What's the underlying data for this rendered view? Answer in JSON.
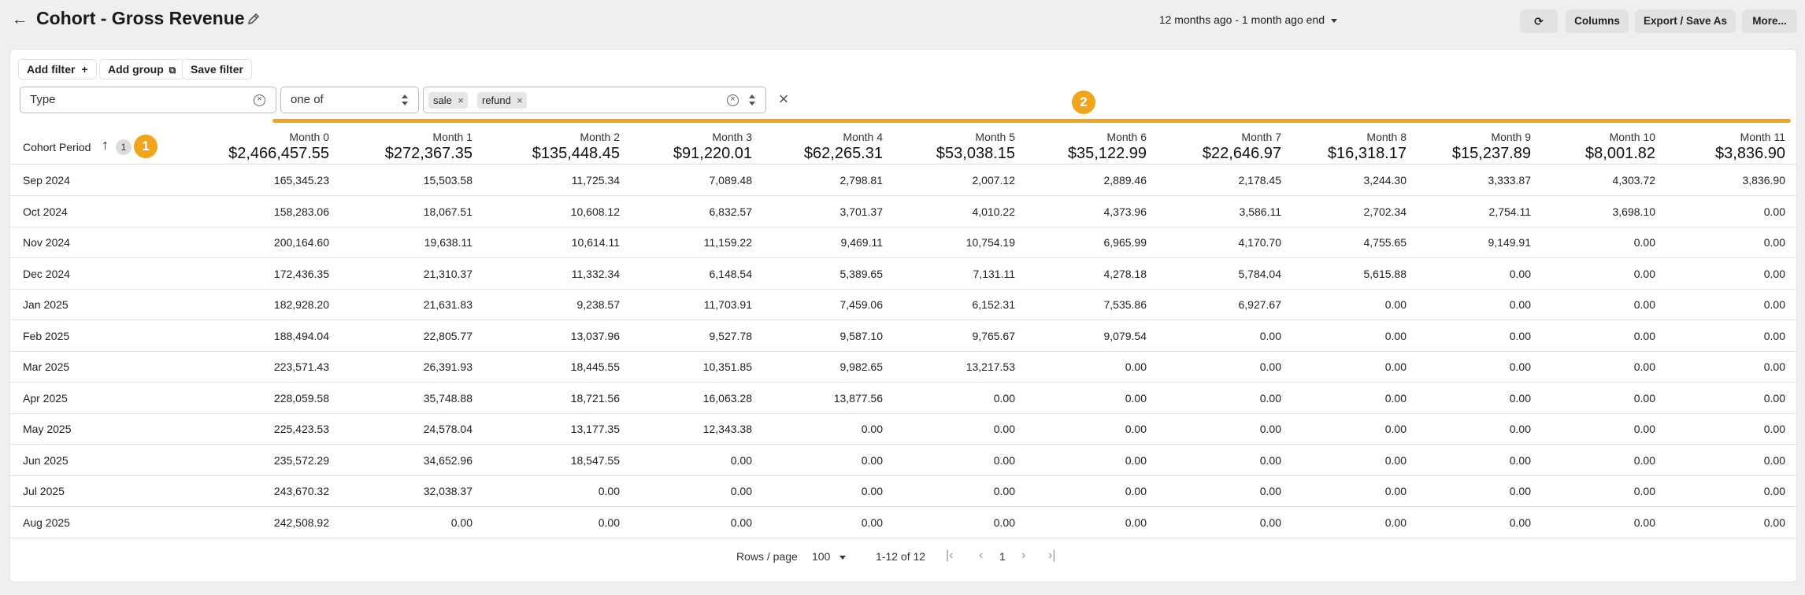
{
  "header": {
    "title": "Cohort - Gross Revenue",
    "date_range": "12 months ago - 1 month ago end",
    "refresh_glyph": "⟳",
    "columns_label": "Columns",
    "export_label": "Export / Save As",
    "more_label": "More..."
  },
  "filters": {
    "add_filter": "Add filter",
    "add_group": "Add group",
    "save_filter": "Save filter",
    "field": "Type",
    "operator": "one of",
    "values": [
      "sale",
      "refund"
    ]
  },
  "annotations": {
    "badge1": "1",
    "badge2": "2"
  },
  "table": {
    "row_header": "Cohort Period",
    "sort_count": "1",
    "columns": [
      {
        "label": "Month 0",
        "total": "$2,466,457.55"
      },
      {
        "label": "Month 1",
        "total": "$272,367.35"
      },
      {
        "label": "Month 2",
        "total": "$135,448.45"
      },
      {
        "label": "Month 3",
        "total": "$91,220.01"
      },
      {
        "label": "Month 4",
        "total": "$62,265.31"
      },
      {
        "label": "Month 5",
        "total": "$53,038.15"
      },
      {
        "label": "Month 6",
        "total": "$35,122.99"
      },
      {
        "label": "Month 7",
        "total": "$22,646.97"
      },
      {
        "label": "Month 8",
        "total": "$16,318.17"
      },
      {
        "label": "Month 9",
        "total": "$15,237.89"
      },
      {
        "label": "Month 10",
        "total": "$8,001.82"
      },
      {
        "label": "Month 11",
        "total": "$3,836.90"
      }
    ],
    "rows": [
      {
        "period": "Sep 2024",
        "values": [
          "165,345.23",
          "15,503.58",
          "11,725.34",
          "7,089.48",
          "2,798.81",
          "2,007.12",
          "2,889.46",
          "2,178.45",
          "3,244.30",
          "3,333.87",
          "4,303.72",
          "3,836.90"
        ]
      },
      {
        "period": "Oct 2024",
        "values": [
          "158,283.06",
          "18,067.51",
          "10,608.12",
          "6,832.57",
          "3,701.37",
          "4,010.22",
          "4,373.96",
          "3,586.11",
          "2,702.34",
          "2,754.11",
          "3,698.10",
          "0.00"
        ]
      },
      {
        "period": "Nov 2024",
        "values": [
          "200,164.60",
          "19,638.11",
          "10,614.11",
          "11,159.22",
          "9,469.11",
          "10,754.19",
          "6,965.99",
          "4,170.70",
          "4,755.65",
          "9,149.91",
          "0.00",
          "0.00"
        ]
      },
      {
        "period": "Dec 2024",
        "values": [
          "172,436.35",
          "21,310.37",
          "11,332.34",
          "6,148.54",
          "5,389.65",
          "7,131.11",
          "4,278.18",
          "5,784.04",
          "5,615.88",
          "0.00",
          "0.00",
          "0.00"
        ]
      },
      {
        "period": "Jan 2025",
        "values": [
          "182,928.20",
          "21,631.83",
          "9,238.57",
          "11,703.91",
          "7,459.06",
          "6,152.31",
          "7,535.86",
          "6,927.67",
          "0.00",
          "0.00",
          "0.00",
          "0.00"
        ]
      },
      {
        "period": "Feb 2025",
        "values": [
          "188,494.04",
          "22,805.77",
          "13,037.96",
          "9,527.78",
          "9,587.10",
          "9,765.67",
          "9,079.54",
          "0.00",
          "0.00",
          "0.00",
          "0.00",
          "0.00"
        ]
      },
      {
        "period": "Mar 2025",
        "values": [
          "223,571.43",
          "26,391.93",
          "18,445.55",
          "10,351.85",
          "9,982.65",
          "13,217.53",
          "0.00",
          "0.00",
          "0.00",
          "0.00",
          "0.00",
          "0.00"
        ]
      },
      {
        "period": "Apr 2025",
        "values": [
          "228,059.58",
          "35,748.88",
          "18,721.56",
          "16,063.28",
          "13,877.56",
          "0.00",
          "0.00",
          "0.00",
          "0.00",
          "0.00",
          "0.00",
          "0.00"
        ]
      },
      {
        "period": "May 2025",
        "values": [
          "225,423.53",
          "24,578.04",
          "13,177.35",
          "12,343.38",
          "0.00",
          "0.00",
          "0.00",
          "0.00",
          "0.00",
          "0.00",
          "0.00",
          "0.00"
        ]
      },
      {
        "period": "Jun 2025",
        "values": [
          "235,572.29",
          "34,652.96",
          "18,547.55",
          "0.00",
          "0.00",
          "0.00",
          "0.00",
          "0.00",
          "0.00",
          "0.00",
          "0.00",
          "0.00"
        ]
      },
      {
        "period": "Jul 2025",
        "values": [
          "243,670.32",
          "32,038.37",
          "0.00",
          "0.00",
          "0.00",
          "0.00",
          "0.00",
          "0.00",
          "0.00",
          "0.00",
          "0.00",
          "0.00"
        ]
      },
      {
        "period": "Aug 2025",
        "values": [
          "242,508.92",
          "0.00",
          "0.00",
          "0.00",
          "0.00",
          "0.00",
          "0.00",
          "0.00",
          "0.00",
          "0.00",
          "0.00",
          "0.00"
        ]
      }
    ]
  },
  "pagination": {
    "rows_per_page_label": "Rows / page",
    "rows_per_page": "100",
    "range": "1-12 of 12",
    "page": "1"
  },
  "colors": {
    "accent": "#f1a51a",
    "button_bg": "#e2e2e2"
  }
}
